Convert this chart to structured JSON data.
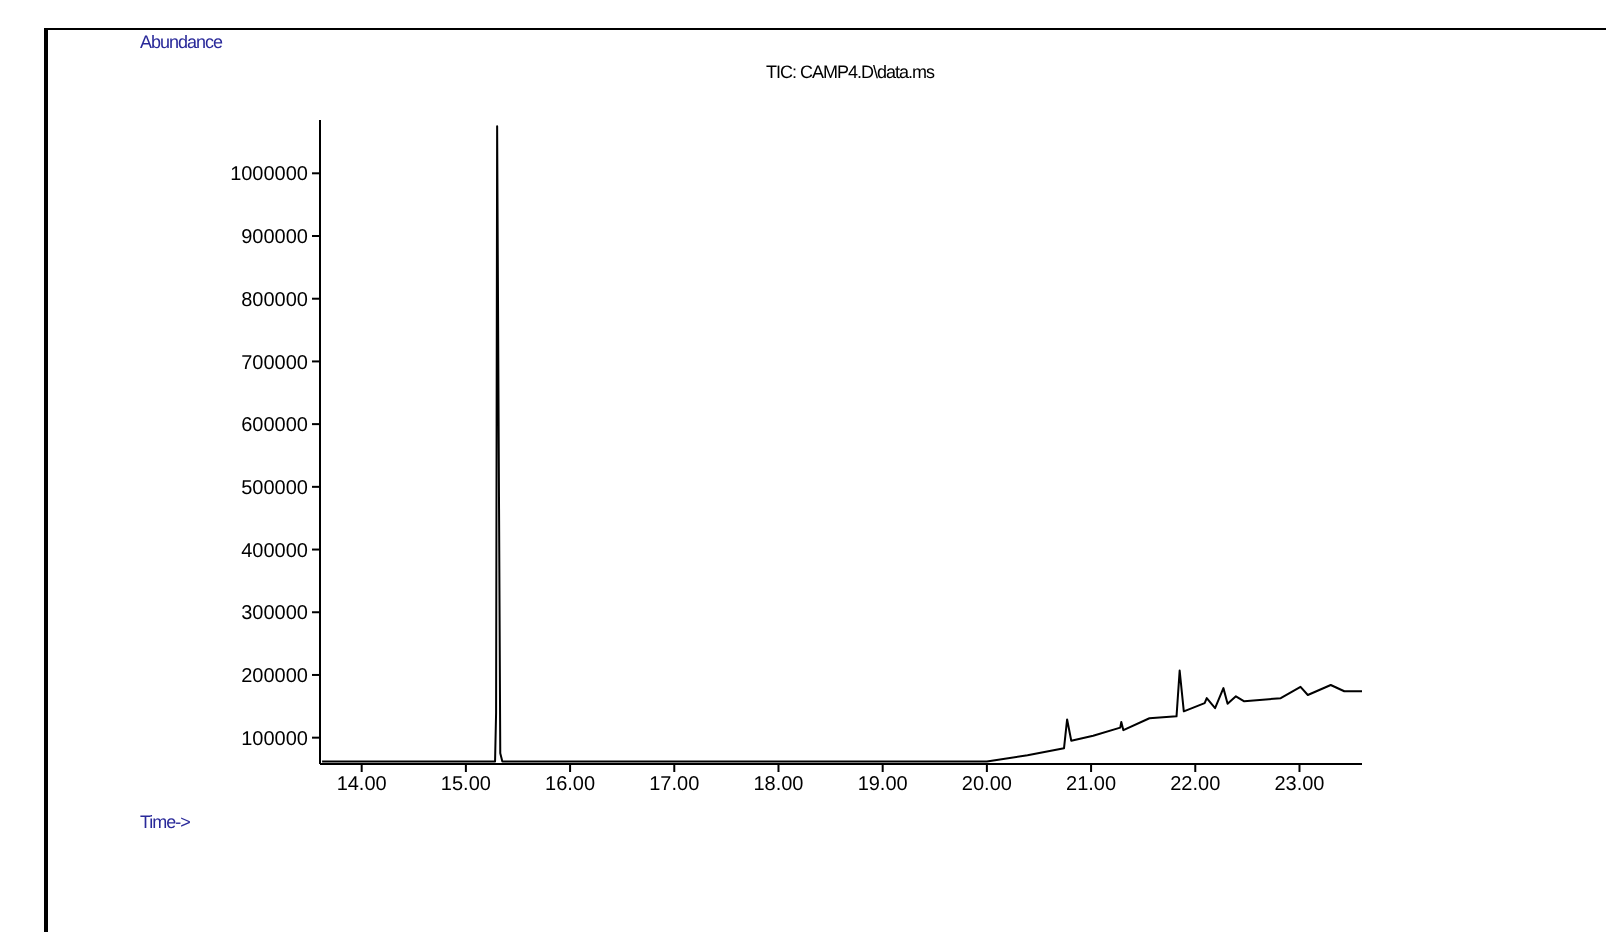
{
  "chart_data": {
    "type": "line",
    "title": "TIC: CAMP4.D\\data.ms",
    "xlabel": "Time->",
    "ylabel": "Abundance",
    "xlim": [
      13.6,
      23.6
    ],
    "xticks": [
      {
        "value": 14,
        "label": "14.00"
      },
      {
        "value": 15,
        "label": "15.00"
      },
      {
        "value": 16,
        "label": "16.00"
      },
      {
        "value": 17,
        "label": "17.00"
      },
      {
        "value": 18,
        "label": "18.00"
      },
      {
        "value": 19,
        "label": "19.00"
      },
      {
        "value": 20,
        "label": "20.00"
      },
      {
        "value": 21,
        "label": "21.00"
      },
      {
        "value": 22,
        "label": "22.00"
      },
      {
        "value": 23,
        "label": "23.00"
      }
    ],
    "ylim": [
      58000,
      1085000
    ],
    "yticks": [
      100000,
      200000,
      300000,
      400000,
      500000,
      600000,
      700000,
      800000,
      900000,
      1000000
    ],
    "grid": false,
    "legend": false,
    "marker": "none",
    "line_style": "solid",
    "series": [
      {
        "color": "#000000",
        "x": [
          13.62,
          15.28,
          15.29,
          15.3,
          15.33,
          15.35,
          20.0,
          20.39,
          20.74,
          20.77,
          20.81,
          21.02,
          21.28,
          21.29,
          21.31,
          21.56,
          21.82,
          21.85,
          21.89,
          22.09,
          22.11,
          22.19,
          22.27,
          22.31,
          22.39,
          22.47,
          22.82,
          23.01,
          23.08,
          23.3,
          23.43,
          23.6
        ],
        "values": [
          62000,
          62000,
          140000,
          1075000,
          75000,
          62000,
          62000,
          72000,
          83000,
          129000,
          95000,
          103000,
          116000,
          125000,
          112000,
          131000,
          134000,
          207000,
          142000,
          155000,
          163000,
          147000,
          179000,
          154000,
          166000,
          158000,
          163000,
          181000,
          168000,
          184000,
          174000,
          174000
        ]
      }
    ]
  }
}
